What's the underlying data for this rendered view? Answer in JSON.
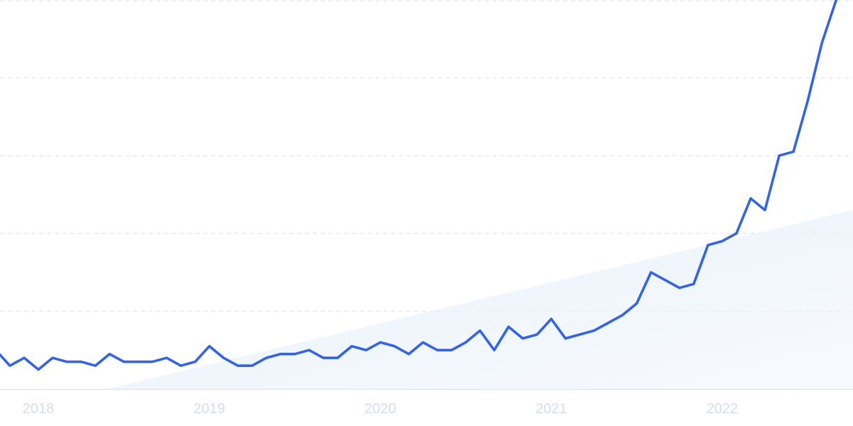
{
  "chart_data": {
    "type": "line",
    "title": "",
    "xlabel": "",
    "ylabel": "",
    "x_ticks": [
      "2018",
      "2019",
      "2020",
      "2021",
      "2022"
    ],
    "x_start": 2017.75,
    "x_step": 0.0833333,
    "ylim": [
      0,
      100
    ],
    "grid": true,
    "y_gridlines": [
      20,
      40,
      60,
      80,
      100
    ],
    "legend": "none",
    "colors": {
      "line": "#3463e6",
      "grid": "#e3e8ef",
      "axis": "#dbe4f3",
      "trend_fill": "#e9f1fc",
      "tick_text": "#d3ddf2"
    },
    "trend": {
      "start": [
        2018.4,
        0
      ],
      "end": [
        2022.75,
        46
      ]
    },
    "series": [
      {
        "values": [
          10,
          6,
          8,
          5,
          8,
          7,
          7,
          6,
          9,
          7,
          7,
          7,
          8,
          6,
          7,
          11,
          8,
          6,
          6,
          8,
          9,
          9,
          10,
          8,
          8,
          11,
          10,
          12,
          11,
          9,
          12,
          10,
          10,
          12,
          15,
          10,
          16,
          13,
          14,
          18,
          13,
          14,
          15,
          17,
          19,
          22,
          30,
          28,
          26,
          27,
          37,
          38,
          40,
          49,
          46,
          60,
          61,
          74,
          89,
          100
        ]
      }
    ]
  }
}
